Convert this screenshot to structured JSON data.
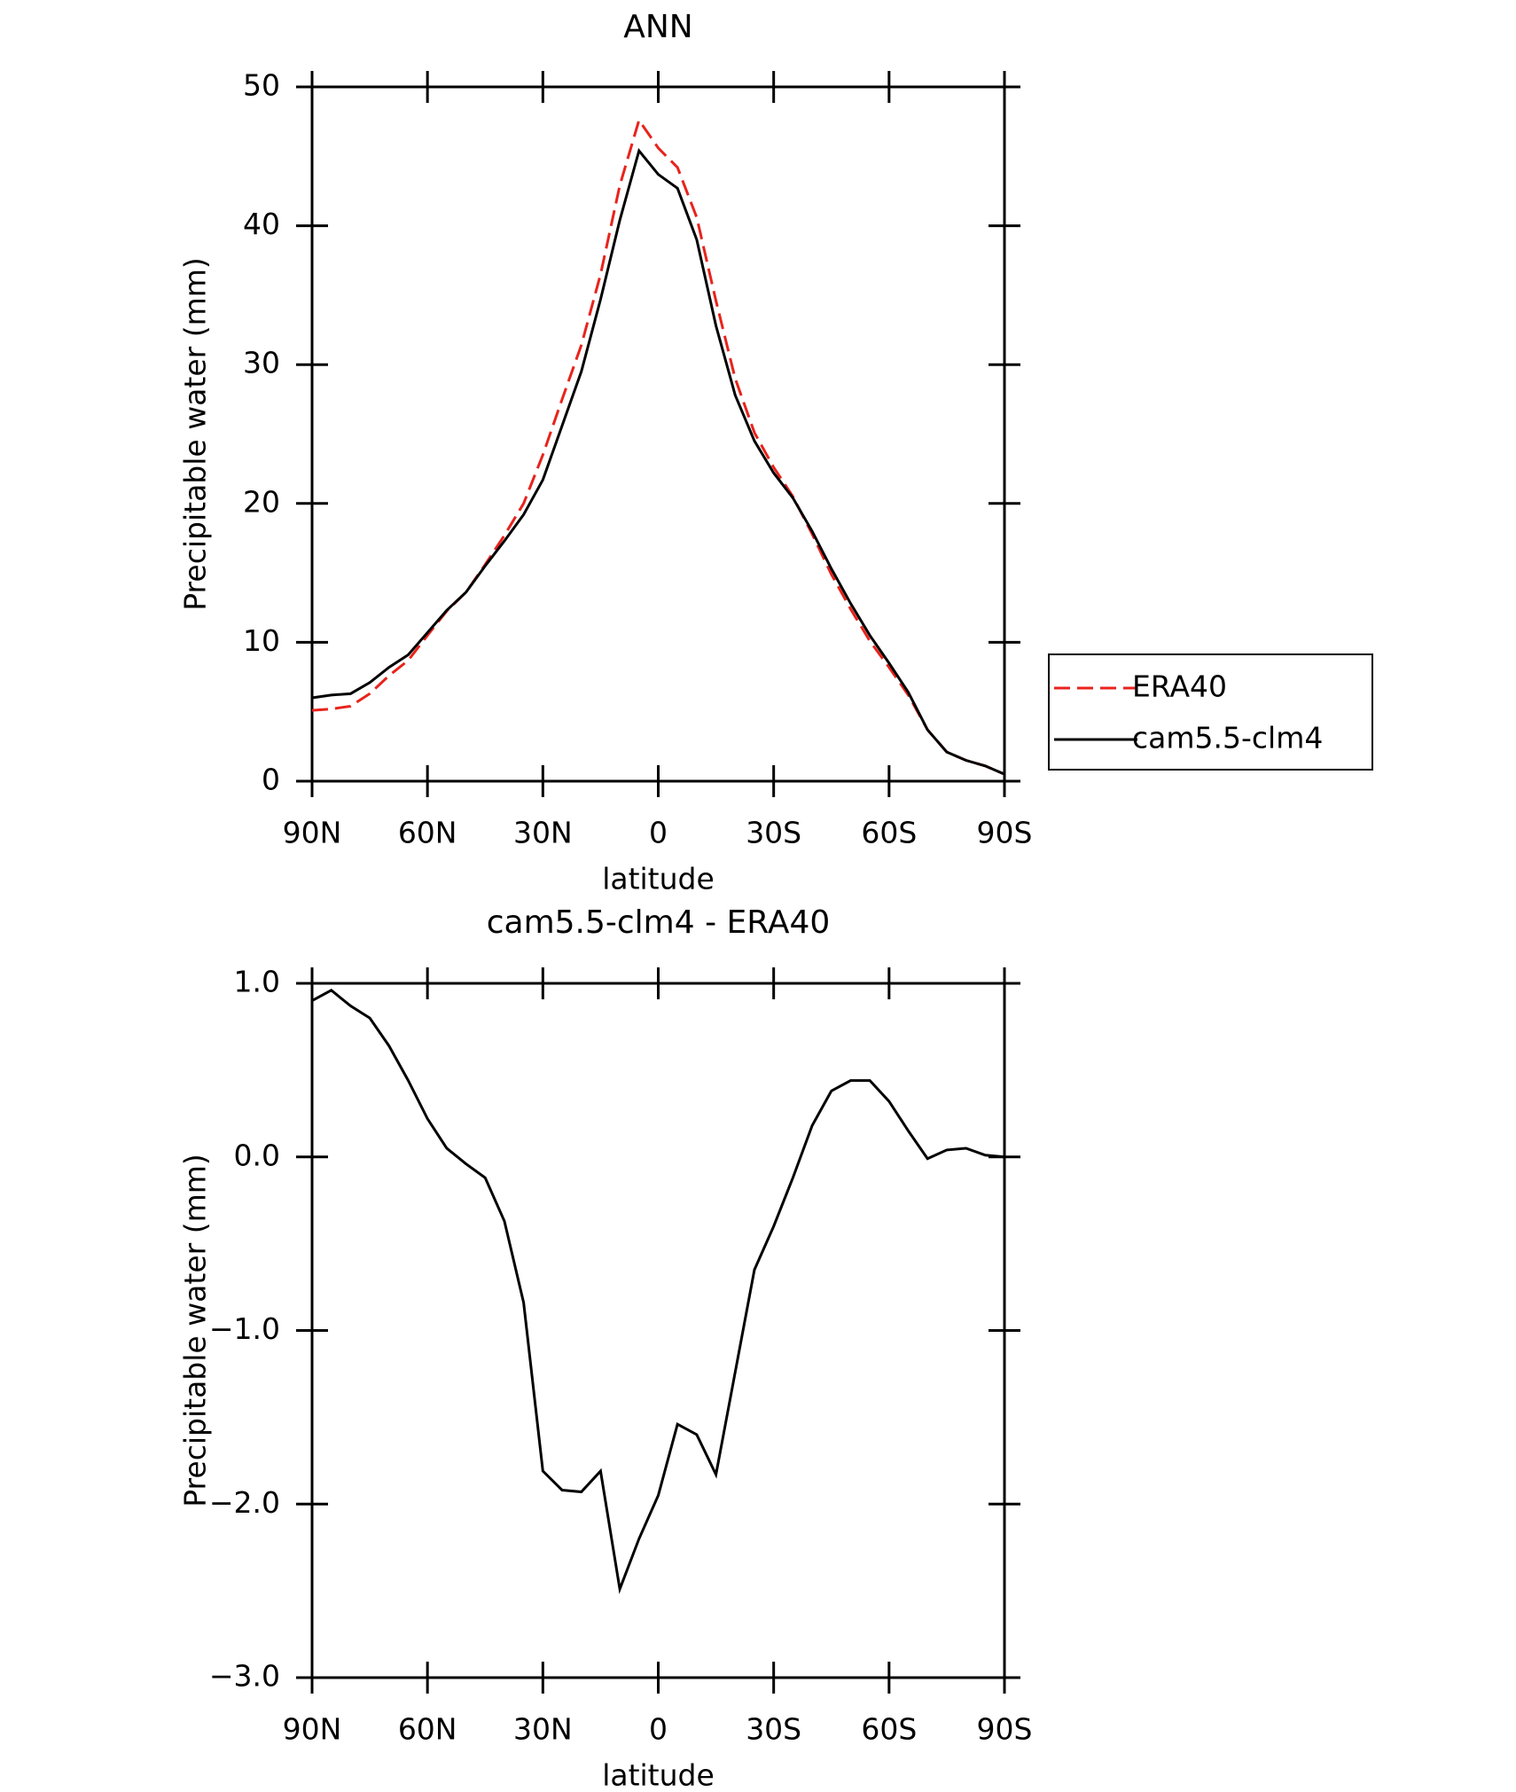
{
  "chart_data": [
    {
      "type": "line",
      "title": "ANN",
      "xlabel": "latitude",
      "ylabel": "Precipitable water (mm)",
      "x": [
        90,
        85,
        80,
        75,
        70,
        65,
        60,
        55,
        50,
        45,
        40,
        35,
        30,
        25,
        20,
        15,
        10,
        5,
        0,
        -5,
        -10,
        -15,
        -20,
        -25,
        -30,
        -35,
        -40,
        -45,
        -50,
        -55,
        -60,
        -65,
        -70,
        -75,
        -80,
        -85,
        -90
      ],
      "series": [
        {
          "name": "ERA40",
          "color": "#e8231c",
          "style": "dashed",
          "values": [
            5.1,
            5.2,
            5.4,
            6.3,
            7.6,
            8.7,
            10.5,
            12.25,
            13.6,
            15.6,
            17.7,
            20.0,
            23.5,
            27.5,
            31.4,
            36.5,
            42.9,
            47.6,
            45.6,
            44.2,
            40.6,
            34.6,
            29.0,
            25.1,
            22.6,
            20.5,
            17.8,
            14.9,
            12.4,
            10.1,
            8.2,
            6.2,
            3.7,
            2.1,
            1.5,
            1.1,
            0.5
          ]
        },
        {
          "name": "cam5.5-clm4",
          "color": "#000000",
          "style": "solid",
          "values": [
            6.0,
            6.2,
            6.3,
            7.1,
            8.2,
            9.1,
            10.7,
            12.3,
            13.6,
            15.5,
            17.3,
            19.2,
            21.7,
            25.6,
            29.5,
            34.7,
            40.4,
            45.4,
            43.7,
            42.7,
            39.0,
            32.8,
            27.8,
            24.5,
            22.2,
            20.4,
            18.0,
            15.3,
            12.8,
            10.5,
            8.5,
            6.4,
            3.7,
            2.1,
            1.5,
            1.1,
            0.5
          ]
        }
      ],
      "xlim": [
        90,
        -90
      ],
      "xticks": [
        {
          "value": 90,
          "label": "90N"
        },
        {
          "value": 60,
          "label": "60N"
        },
        {
          "value": 30,
          "label": "30N"
        },
        0,
        {
          "value": -30,
          "label": "30S"
        },
        {
          "value": -60,
          "label": "60S"
        },
        {
          "value": -90,
          "label": "90S"
        }
      ],
      "ylim": [
        0,
        50
      ],
      "yticks": [
        0,
        10,
        20,
        30,
        40,
        50
      ],
      "legend": "right"
    },
    {
      "type": "line",
      "title": "cam5.5-clm4 - ERA40",
      "xlabel": "latitude",
      "ylabel": "Precipitable water (mm)",
      "x": [
        90,
        85,
        80,
        75,
        70,
        65,
        60,
        55,
        50,
        45,
        40,
        35,
        30,
        25,
        20,
        15,
        10,
        5,
        0,
        -5,
        -10,
        -15,
        -20,
        -25,
        -30,
        -35,
        -40,
        -45,
        -50,
        -55,
        -60,
        -65,
        -70,
        -75,
        -80,
        -85,
        -90
      ],
      "values": [
        0.9,
        0.96,
        0.87,
        0.8,
        0.64,
        0.44,
        0.22,
        0.05,
        -0.04,
        -0.12,
        -0.37,
        -0.84,
        -1.81,
        -1.92,
        -1.93,
        -1.81,
        -2.49,
        -2.2,
        -1.95,
        -1.54,
        -1.6,
        -1.83,
        -1.24,
        -0.65,
        -0.4,
        -0.12,
        0.18,
        0.38,
        0.44,
        0.44,
        0.32,
        0.15,
        -0.01,
        0.04,
        0.05,
        0.01,
        0.0
      ],
      "color": "#000000",
      "xlim": [
        90,
        -90
      ],
      "xticks": [
        {
          "value": 90,
          "label": "90N"
        },
        {
          "value": 60,
          "label": "60N"
        },
        {
          "value": 30,
          "label": "30N"
        },
        0,
        {
          "value": -30,
          "label": "30S"
        },
        {
          "value": -60,
          "label": "60S"
        },
        {
          "value": -90,
          "label": "90S"
        }
      ],
      "ylim": [
        -3,
        1
      ],
      "yticks": [
        {
          "value": -3,
          "label": "−3.0"
        },
        {
          "value": -2,
          "label": "−2.0"
        },
        {
          "value": -1,
          "label": "−1.0"
        },
        {
          "value": 0,
          "label": "0.0"
        },
        {
          "value": 1,
          "label": "1.0"
        }
      ]
    }
  ]
}
